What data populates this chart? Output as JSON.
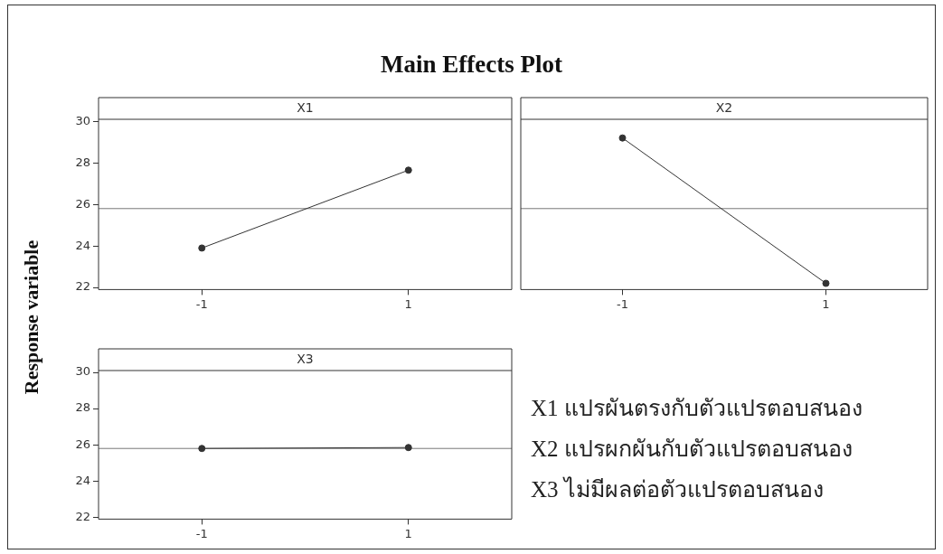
{
  "chart_data": [
    {
      "type": "line",
      "title": "Main Effects Plot",
      "ylabel": "Response variable",
      "xlabel": "X1",
      "categories": [
        "-1",
        "1"
      ],
      "series": [
        {
          "color": "#333333",
          "values": [
            23.9,
            27.65
          ]
        }
      ],
      "ylim": [
        21.9,
        30.1
      ],
      "yticks": [
        22,
        24,
        26,
        28,
        30
      ],
      "ref_lines": [
        {
          "axis": "y",
          "value": 25.8,
          "color": "#777777"
        }
      ],
      "marker": "circle"
    },
    {
      "type": "line",
      "xlabel": "X2",
      "categories": [
        "-1",
        "1"
      ],
      "series": [
        {
          "color": "#333333",
          "values": [
            29.2,
            22.2
          ]
        }
      ],
      "ylim": [
        21.9,
        30.1
      ],
      "yticks": [
        22,
        24,
        26,
        28,
        30
      ],
      "tick_labels": "x",
      "ref_lines": [
        {
          "axis": "y",
          "value": 25.8,
          "color": "#777777"
        }
      ],
      "marker": "circle"
    },
    {
      "type": "line",
      "xlabel": "X3",
      "categories": [
        "-1",
        "1"
      ],
      "series": [
        {
          "color": "#333333",
          "values": [
            25.8,
            25.85
          ]
        }
      ],
      "ylim": [
        21.9,
        30.1
      ],
      "yticks": [
        22,
        24,
        26,
        28,
        30
      ],
      "ref_lines": [
        {
          "axis": "y",
          "value": 25.8,
          "color": "#777777"
        }
      ],
      "marker": "circle"
    },
    {
      "type": "other",
      "annotations": [
        "X1 แปรผันตรงกับตัวแปรตอบสนอง",
        "X2 แปรผกผันกับตัวแปรตอบสนอง",
        "X3 ไม่มีผลต่อตัวแปรตอบสนอง"
      ]
    }
  ]
}
